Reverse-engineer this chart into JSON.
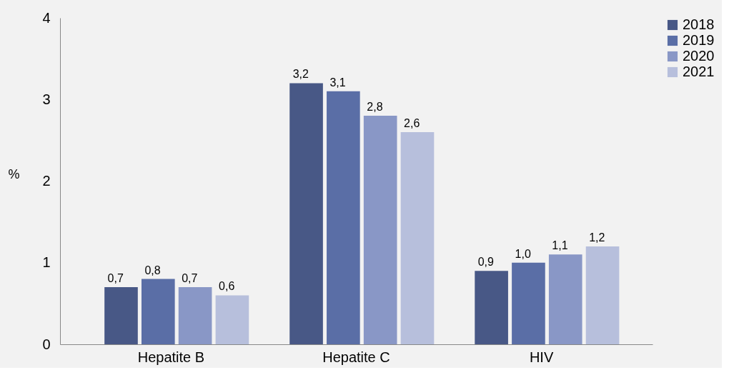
{
  "chart_data": {
    "type": "bar",
    "ylabel": "%",
    "categories": [
      "Hepatite B",
      "Hepatite C",
      "HIV"
    ],
    "series": [
      {
        "name": "2018",
        "color": "#485886",
        "values": [
          0.7,
          3.2,
          0.9
        ],
        "value_labels": [
          "0,7",
          "3,2",
          "0,9"
        ]
      },
      {
        "name": "2019",
        "color": "#5a6ea6",
        "values": [
          0.8,
          3.1,
          1.0
        ],
        "value_labels": [
          "0,8",
          "3,1",
          "1,0"
        ]
      },
      {
        "name": "2020",
        "color": "#8997c6",
        "values": [
          0.7,
          2.8,
          1.1
        ],
        "value_labels": [
          "0,7",
          "2,8",
          "1,1"
        ]
      },
      {
        "name": "2021",
        "color": "#b7bfdc",
        "values": [
          0.6,
          2.6,
          1.2
        ],
        "value_labels": [
          "0,6",
          "2,6",
          "1,2"
        ]
      }
    ],
    "ylim": [
      0,
      4
    ],
    "yticks": [
      0,
      1,
      2,
      3,
      4
    ],
    "grid": false,
    "legend": "right"
  }
}
